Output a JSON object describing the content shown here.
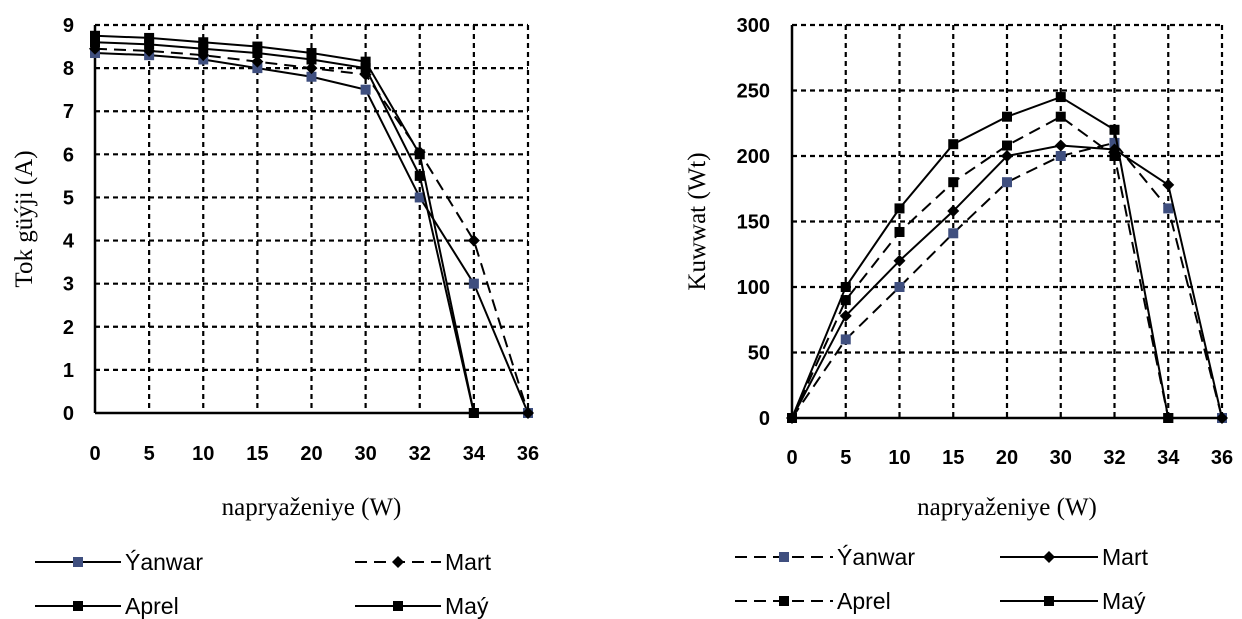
{
  "chart_data": [
    {
      "type": "line",
      "title": "",
      "xlabel": "napryaženiye (W)",
      "ylabel": "Tok güýji (A)",
      "categories": [
        "0",
        "5",
        "10",
        "15",
        "20",
        "30",
        "32",
        "34",
        "36"
      ],
      "ylim": [
        0,
        9
      ],
      "yticks": [
        "0",
        "1",
        "2",
        "3",
        "4",
        "5",
        "6",
        "7",
        "8",
        "9"
      ],
      "grid": true,
      "legend_position": "bottom",
      "series": [
        {
          "name": "Ýanwar",
          "style": "solid",
          "marker": "square",
          "marker_color": "#3f4f7f",
          "values": [
            8.35,
            8.3,
            8.2,
            8.0,
            7.8,
            7.5,
            5.0,
            3.0,
            0
          ]
        },
        {
          "name": "Mart",
          "style": "dashed",
          "marker": "diamond",
          "marker_color": "#000000",
          "values": [
            8.45,
            8.4,
            8.3,
            8.15,
            8.0,
            7.85,
            6.05,
            4.0,
            0
          ]
        },
        {
          "name": "Aprel",
          "style": "solid",
          "marker": "square",
          "marker_color": "#000000",
          "values": [
            8.6,
            8.55,
            8.45,
            8.35,
            8.2,
            8.0,
            5.5,
            0,
            null
          ]
        },
        {
          "name": "Maý",
          "style": "solid",
          "marker": "square",
          "marker_color": "#000000",
          "values": [
            8.75,
            8.7,
            8.6,
            8.5,
            8.35,
            8.15,
            6.0,
            0,
            null
          ]
        }
      ]
    },
    {
      "type": "line",
      "title": "",
      "xlabel": "napryaženiye (W)",
      "ylabel": "Kuwwat (Wt)",
      "categories": [
        "0",
        "5",
        "10",
        "15",
        "20",
        "30",
        "32",
        "34",
        "36"
      ],
      "ylim": [
        0,
        300
      ],
      "yticks": [
        "0",
        "50",
        "100",
        "150",
        "200",
        "250",
        "300"
      ],
      "grid": true,
      "legend_position": "bottom",
      "series": [
        {
          "name": "Ýanwar",
          "style": "dashed",
          "marker": "square",
          "marker_color": "#3f4f7f",
          "values": [
            0,
            60,
            100,
            141,
            180,
            200,
            210,
            160,
            0
          ]
        },
        {
          "name": "Mart",
          "style": "solid",
          "marker": "diamond",
          "marker_color": "#000000",
          "values": [
            0,
            78,
            120,
            158,
            200,
            208,
            205,
            178,
            0
          ]
        },
        {
          "name": "Aprel",
          "style": "dashed",
          "marker": "square",
          "marker_color": "#000000",
          "values": [
            0,
            90,
            142,
            180,
            208,
            230,
            200,
            0,
            null
          ]
        },
        {
          "name": "Maý",
          "style": "solid",
          "marker": "square",
          "marker_color": "#000000",
          "values": [
            0,
            100,
            160,
            209,
            230,
            245,
            220,
            0,
            null
          ]
        }
      ]
    }
  ]
}
